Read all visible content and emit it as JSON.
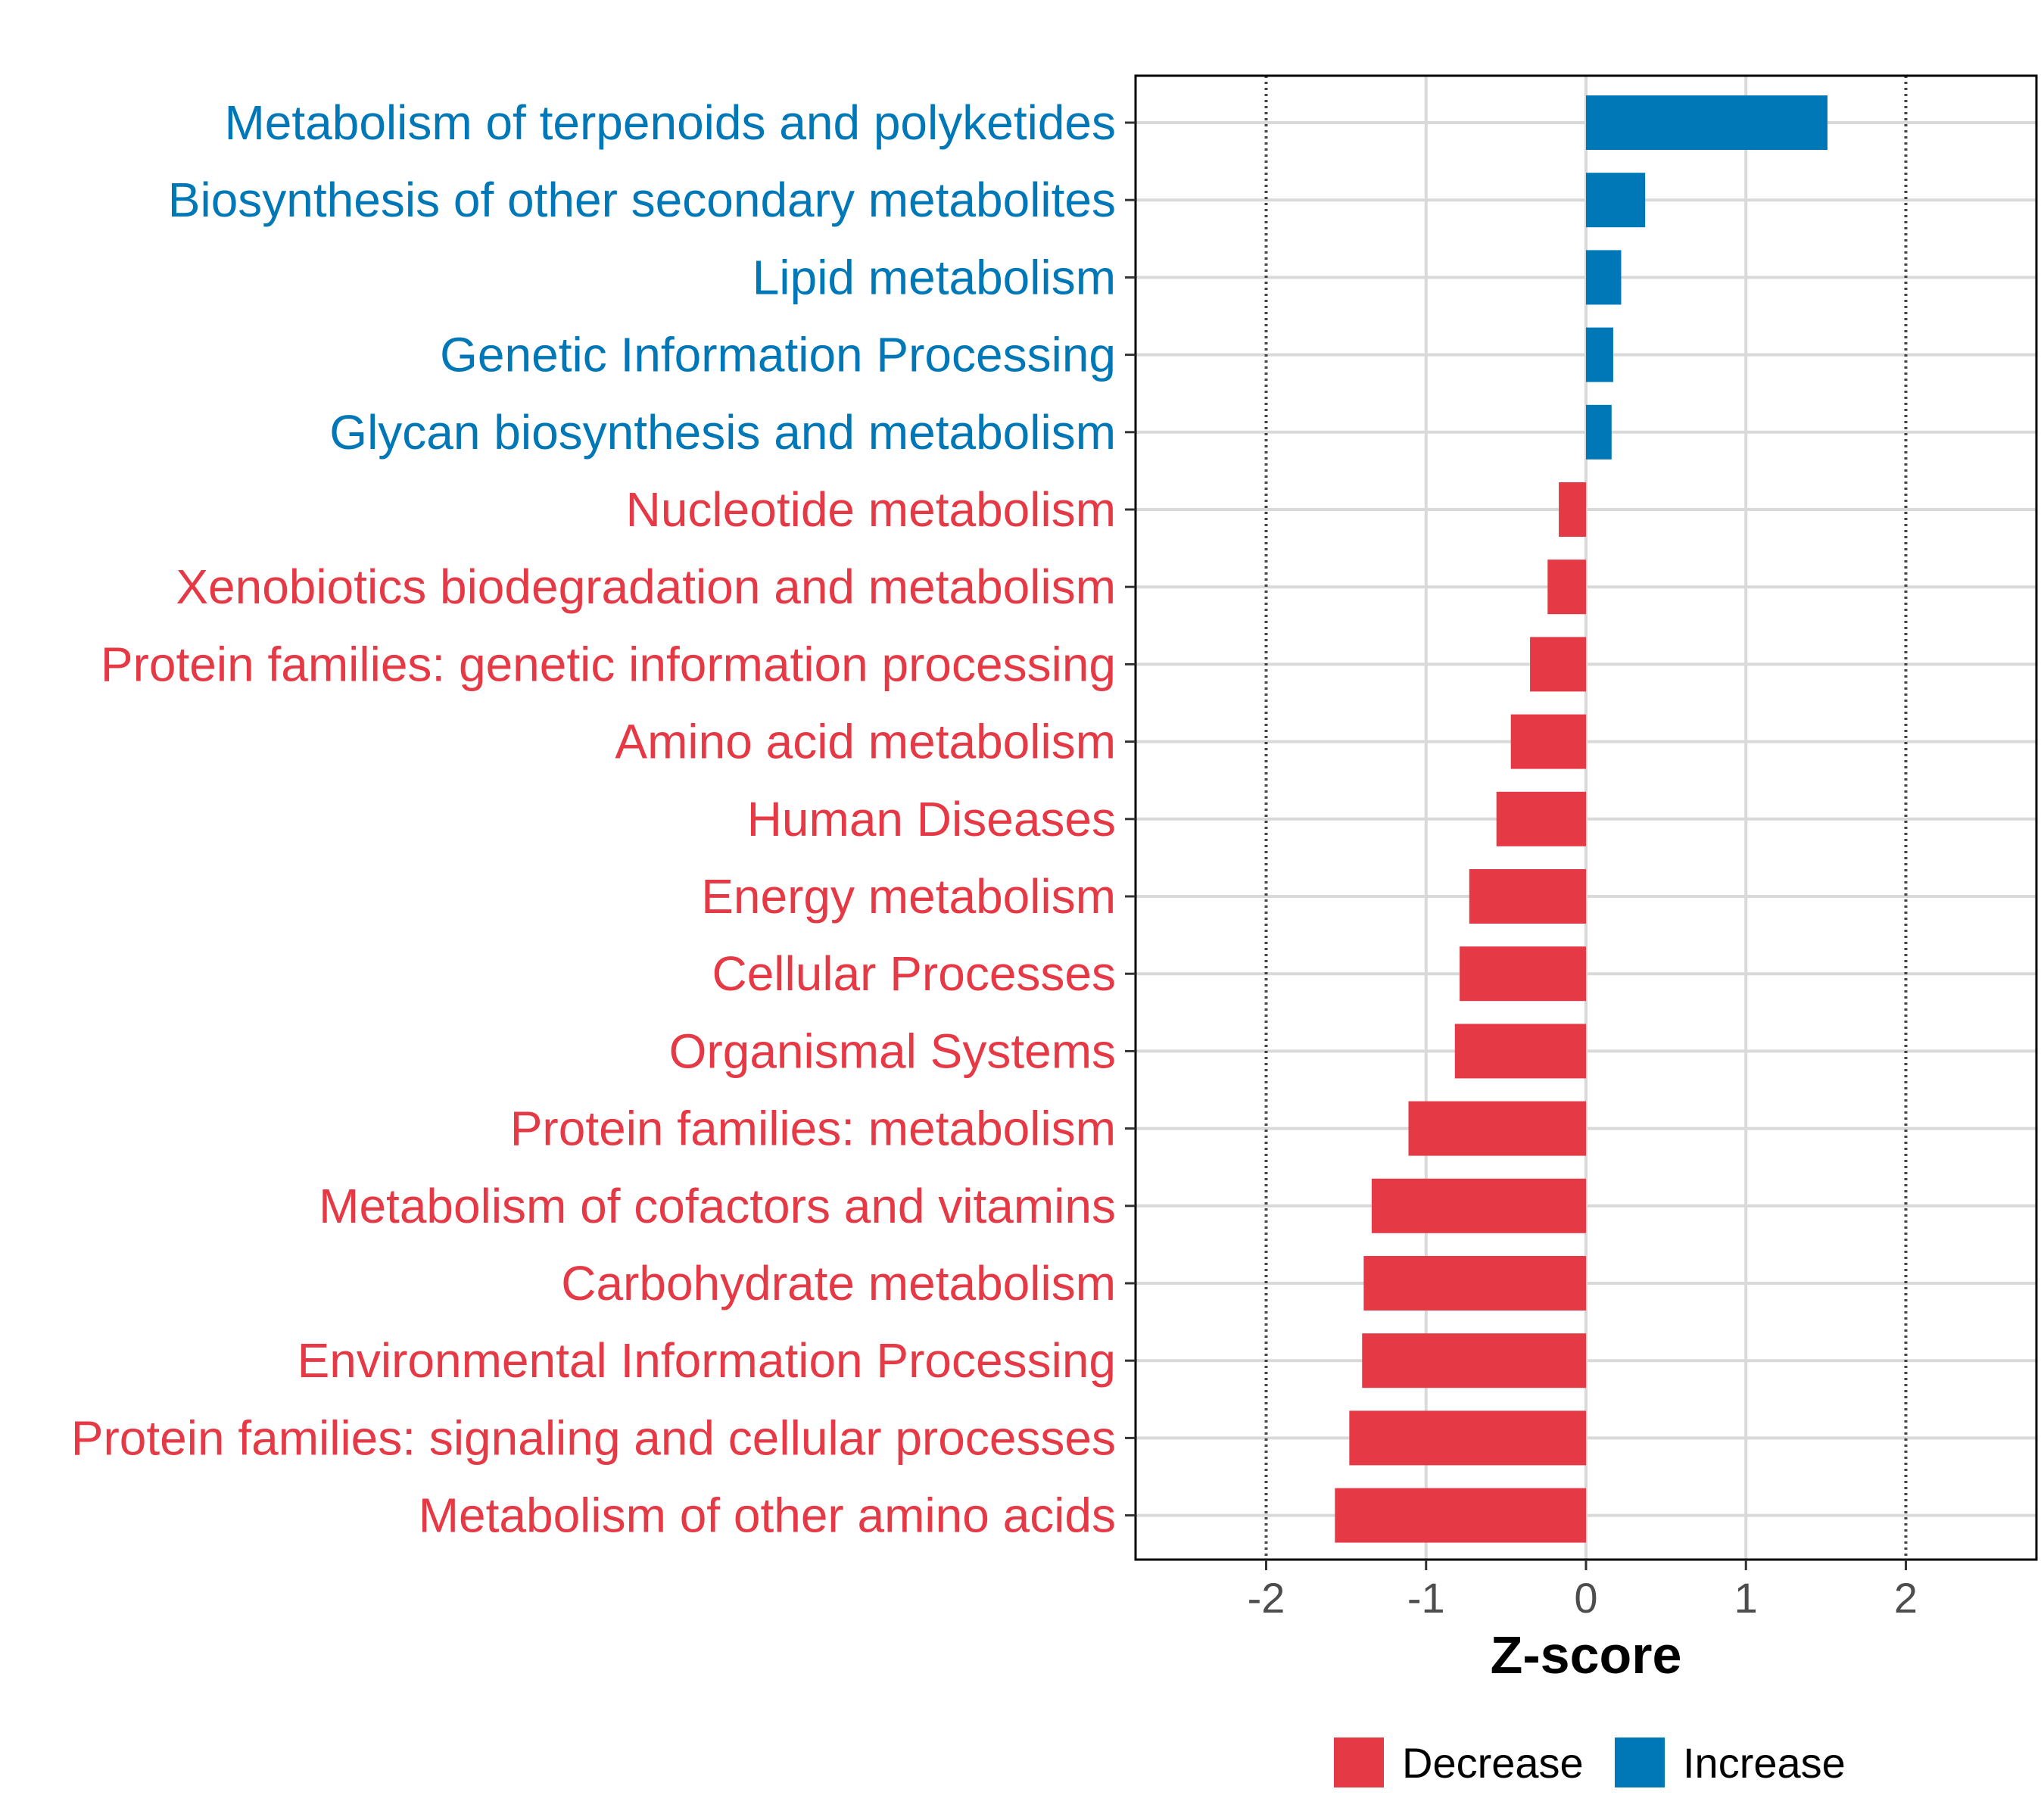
{
  "chart_data": {
    "type": "bar",
    "orientation": "horizontal",
    "title": "",
    "xlabel": "Z-score",
    "ylabel": "",
    "xlim": [
      -2.8,
      2.8
    ],
    "xticks": [
      -2,
      -1,
      0,
      1,
      2
    ],
    "xtick_labels": [
      "-2",
      "-1",
      "0",
      "1",
      "2"
    ],
    "reference_lines": [
      -2,
      2
    ],
    "grid": true,
    "colors": {
      "Decrease": "#e63946",
      "Increase": "#0077b6"
    },
    "categories": [
      "Metabolism of terpenoids and polyketides",
      "Biosynthesis of other secondary metabolites",
      "Lipid metabolism",
      "Genetic Information Processing",
      "Glycan biosynthesis and metabolism",
      "Nucleotide metabolism",
      "Xenobiotics biodegradation and metabolism",
      "Protein families: genetic information processing",
      "Amino acid metabolism",
      "Human Diseases",
      "Energy metabolism",
      "Cellular Processes",
      "Organismal Systems",
      "Protein families: metabolism",
      "Metabolism of cofactors and vitamins",
      "Carbohydrate metabolism",
      "Environmental Information Processing",
      "Protein families: signaling and cellular processes",
      "Metabolism of other amino acids"
    ],
    "values": [
      1.51,
      0.37,
      0.22,
      0.17,
      0.16,
      -0.17,
      -0.24,
      -0.35,
      -0.47,
      -0.56,
      -0.73,
      -0.79,
      -0.82,
      -1.11,
      -1.34,
      -1.39,
      -1.4,
      -1.48,
      -1.57
    ],
    "groups": [
      "Increase",
      "Increase",
      "Increase",
      "Increase",
      "Increase",
      "Decrease",
      "Decrease",
      "Decrease",
      "Decrease",
      "Decrease",
      "Decrease",
      "Decrease",
      "Decrease",
      "Decrease",
      "Decrease",
      "Decrease",
      "Decrease",
      "Decrease",
      "Decrease"
    ],
    "legend": {
      "position": "bottom",
      "entries": [
        {
          "label": "Decrease",
          "color": "#e63946"
        },
        {
          "label": "Increase",
          "color": "#0077b6"
        }
      ]
    }
  }
}
